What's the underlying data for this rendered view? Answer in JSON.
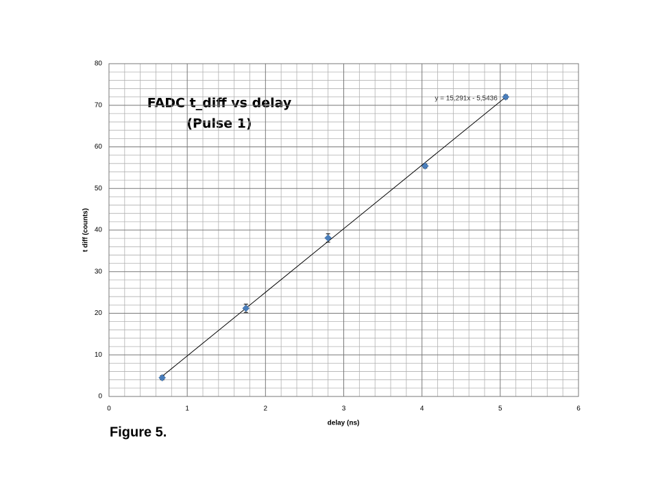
{
  "chart_data": {
    "type": "scatter",
    "title": [
      "FADC  t_diff vs delay",
      "(Pulse 1)"
    ],
    "x_label": "delay (ns)",
    "y_label": "t diff (counts)",
    "caption": "Figure 5.",
    "series": [
      {
        "name": "t_diff",
        "color": "#4a7ebb",
        "x": [
          0.68,
          1.75,
          2.8,
          4.04,
          5.07
        ],
        "values": [
          4.5,
          21.2,
          38.1,
          55.4,
          72.0
        ],
        "errors": [
          0.5,
          1.0,
          1.0,
          0.5,
          0.5
        ]
      }
    ],
    "trendline": {
      "label": "y = 15,291x - 5,5436",
      "slope": 15.291,
      "intercept": -5.5436
    },
    "xlim": [
      0,
      6
    ],
    "xticks": [
      0,
      1,
      2,
      3,
      4,
      5,
      6
    ],
    "ylim": [
      0,
      80
    ],
    "yticks": [
      0,
      10,
      20,
      30,
      40,
      50,
      60,
      70,
      80
    ],
    "grid": true,
    "minor_divisions": 5
  }
}
